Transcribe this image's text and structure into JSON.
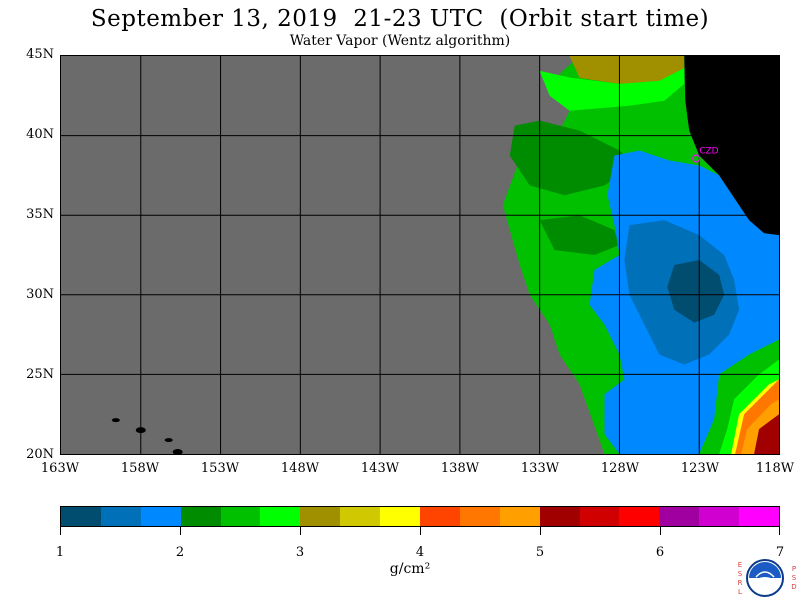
{
  "title": "September 13, 2019  21-23 UTC  (Orbit start time)",
  "subtitle": "Water Vapor (Wentz algorithm)",
  "map": {
    "lat_range": [
      20,
      45
    ],
    "lon_range": [
      -163,
      -118
    ],
    "lat_ticks": [
      "45N",
      "40N",
      "35N",
      "30N",
      "25N",
      "20N"
    ],
    "lon_ticks": [
      "163W",
      "158W",
      "153W",
      "148W",
      "143W",
      "138W",
      "133W",
      "128W",
      "123W",
      "118W"
    ],
    "station_label": "CZD",
    "colors": {
      "no_data": "#6b6b6b",
      "land": "#000000",
      "grid": "#000000",
      "station": "#ff00ff"
    }
  },
  "colorbar": {
    "labels": [
      "1",
      "2",
      "3",
      "4",
      "5",
      "6",
      "7"
    ],
    "unit": "g/cm²",
    "colors": [
      "#004d70",
      "#0070b8",
      "#0088ff",
      "#008c00",
      "#00c000",
      "#00ff00",
      "#a09000",
      "#d0c800",
      "#ffff00",
      "#ff4400",
      "#ff7700",
      "#ffa000",
      "#a00000",
      "#d00000",
      "#ff0000",
      "#a000a0",
      "#d000d0",
      "#ff00ff"
    ]
  },
  "logo": {
    "left_letters": [
      "E",
      "S",
      "R",
      "L"
    ],
    "right_letters": [
      "P",
      "S",
      "D"
    ],
    "text": "NOAA"
  }
}
